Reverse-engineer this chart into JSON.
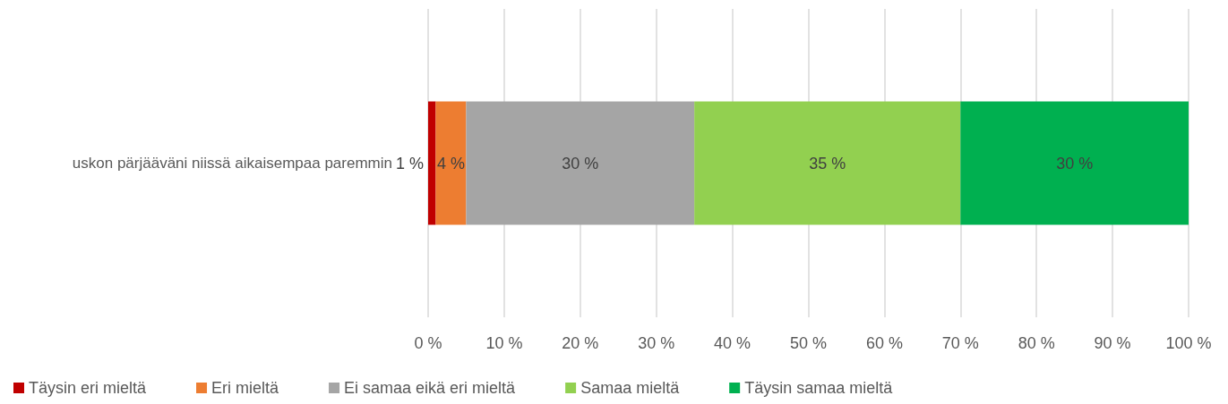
{
  "chart_data": {
    "type": "bar",
    "orientation": "horizontal",
    "stacked": true,
    "categories": [
      "uskon pärjääväni niissä aikaisempaa paremmin"
    ],
    "series": [
      {
        "name": "Täysin eri mieltä",
        "color": "#c00000",
        "values": [
          1
        ],
        "value_labels": [
          "1 %"
        ]
      },
      {
        "name": "Eri mieltä",
        "color": "#ed7d31",
        "values": [
          4
        ],
        "value_labels": [
          "4 %"
        ]
      },
      {
        "name": "Ei samaa eikä eri mieltä",
        "color": "#a5a5a5",
        "values": [
          30
        ],
        "value_labels": [
          "30 %"
        ]
      },
      {
        "name": "Samaa mieltä",
        "color": "#92d050",
        "values": [
          35
        ],
        "value_labels": [
          "35 %"
        ]
      },
      {
        "name": "Täysin samaa mieltä",
        "color": "#00b050",
        "values": [
          30
        ],
        "value_labels": [
          "30 %"
        ]
      }
    ],
    "xlim": [
      0,
      100
    ],
    "xticks": [
      {
        "value": 0,
        "label": "0 %"
      },
      {
        "value": 10,
        "label": "10 %"
      },
      {
        "value": 20,
        "label": "20 %"
      },
      {
        "value": 30,
        "label": "30 %"
      },
      {
        "value": 40,
        "label": "40 %"
      },
      {
        "value": 50,
        "label": "50 %"
      },
      {
        "value": 60,
        "label": "60 %"
      },
      {
        "value": 70,
        "label": "70 %"
      },
      {
        "value": 80,
        "label": "80 %"
      },
      {
        "value": 90,
        "label": "90 %"
      },
      {
        "value": 100,
        "label": "100 %"
      }
    ],
    "grid": "x",
    "legend": "bottom"
  }
}
